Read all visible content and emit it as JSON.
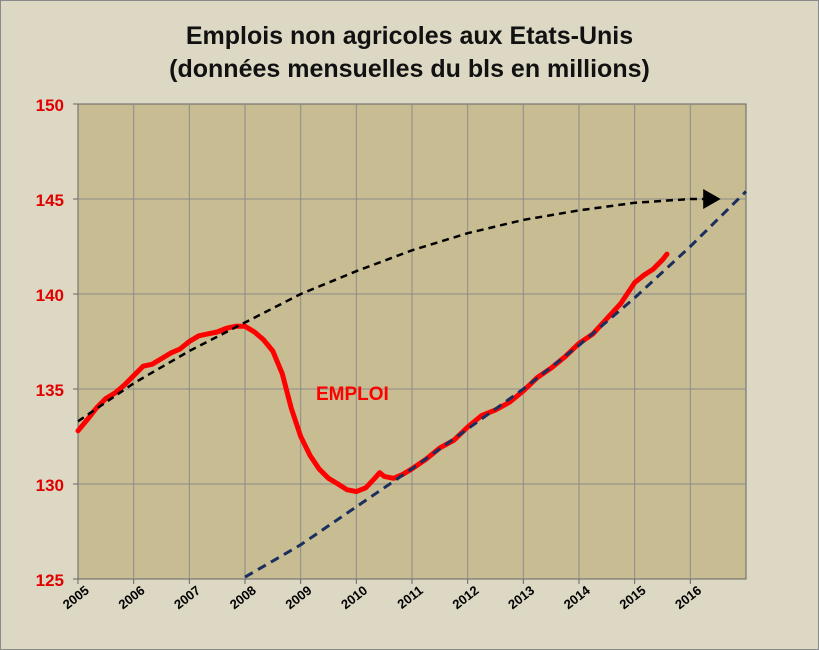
{
  "chart_data": {
    "type": "line",
    "title_line1": "Emplois non agricoles aux Etats-Unis",
    "title_line2": "(données mensuelles du bls en millions)",
    "x_ticks": [
      "2005",
      "2006",
      "2007",
      "2008",
      "2009",
      "2010",
      "2011",
      "2012",
      "2013",
      "2014",
      "2015",
      "2016"
    ],
    "y_ticks": [
      125,
      130,
      135,
      140,
      145,
      150
    ],
    "xlim": [
      2005,
      2017
    ],
    "ylim": [
      125,
      150
    ],
    "grid": true,
    "annotation": "EMPLOI",
    "series": [
      {
        "name": "EMPLOI",
        "color": "#ff0000",
        "style": "solid",
        "x": [
          2005.0,
          2005.17,
          2005.33,
          2005.5,
          2005.67,
          2005.83,
          2006.0,
          2006.17,
          2006.33,
          2006.5,
          2006.67,
          2006.83,
          2007.0,
          2007.17,
          2007.33,
          2007.5,
          2007.67,
          2007.83,
          2008.0,
          2008.17,
          2008.33,
          2008.5,
          2008.67,
          2008.83,
          2009.0,
          2009.17,
          2009.33,
          2009.5,
          2009.67,
          2009.83,
          2010.0,
          2010.17,
          2010.33,
          2010.42,
          2010.5,
          2010.67,
          2010.83,
          2011.0,
          2011.25,
          2011.5,
          2011.75,
          2012.0,
          2012.25,
          2012.5,
          2012.75,
          2013.0,
          2013.25,
          2013.5,
          2013.75,
          2014.0,
          2014.25,
          2014.5,
          2014.75,
          2015.0,
          2015.17,
          2015.33,
          2015.5,
          2015.58
        ],
        "y": [
          132.8,
          133.4,
          134.0,
          134.5,
          134.8,
          135.2,
          135.7,
          136.2,
          136.3,
          136.6,
          136.9,
          137.1,
          137.5,
          137.8,
          137.9,
          138.0,
          138.2,
          138.3,
          138.3,
          138.0,
          137.6,
          137.0,
          135.8,
          134.0,
          132.5,
          131.5,
          130.8,
          130.3,
          130.0,
          129.7,
          129.6,
          129.8,
          130.3,
          130.6,
          130.4,
          130.3,
          130.5,
          130.8,
          131.3,
          131.9,
          132.3,
          133.0,
          133.6,
          133.9,
          134.3,
          134.9,
          135.6,
          136.1,
          136.7,
          137.4,
          137.9,
          138.7,
          139.5,
          140.6,
          141.0,
          141.3,
          141.8,
          142.1
        ]
      },
      {
        "name": "",
        "color": "#000000",
        "style": "dashed",
        "x": [
          2005.0,
          2006.0,
          2007.0,
          2008.0,
          2009.0,
          2010.0,
          2011.0,
          2012.0,
          2013.0,
          2014.0,
          2015.0,
          2015.5,
          2016.0,
          2016.5
        ],
        "y": [
          133.3,
          135.3,
          137.0,
          138.5,
          140.0,
          141.2,
          142.3,
          143.2,
          143.9,
          144.4,
          144.8,
          144.9,
          145.0,
          145.0
        ]
      },
      {
        "name": "",
        "color": "#1b2f5e",
        "style": "dashed",
        "x": [
          2008.0,
          2009.0,
          2010.0,
          2011.0,
          2012.0,
          2013.0,
          2014.0,
          2015.0,
          2016.0,
          2017.0
        ],
        "y": [
          125.1,
          126.8,
          128.8,
          130.8,
          132.9,
          135.0,
          137.3,
          139.8,
          142.5,
          145.4
        ]
      }
    ]
  }
}
